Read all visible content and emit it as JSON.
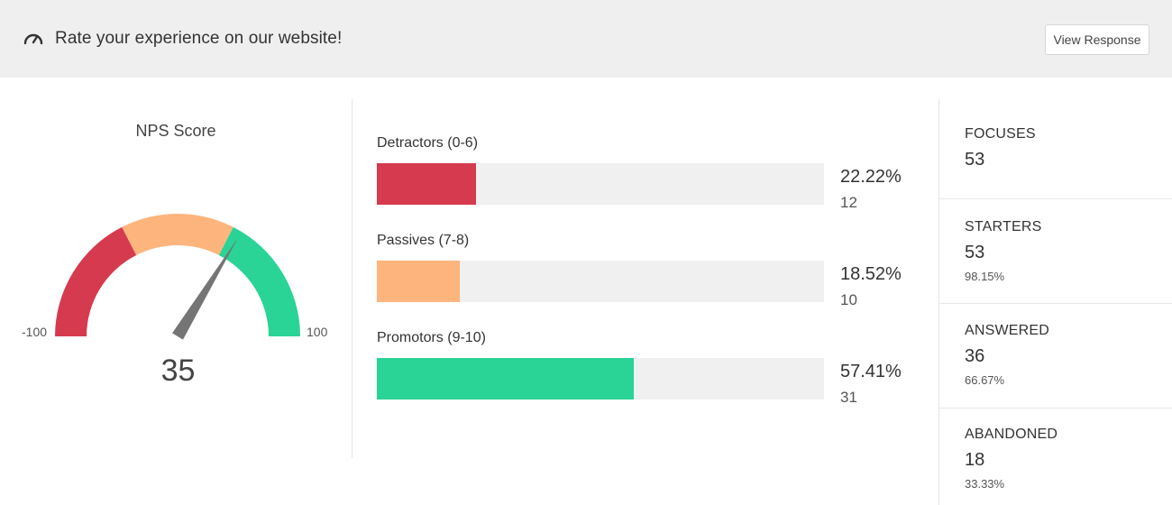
{
  "header": {
    "icon": "speedometer-icon",
    "title": "Rate your experience on our website!",
    "view_button": "View Response"
  },
  "gauge": {
    "title": "NPS Score",
    "min_label": "-100",
    "max_label": "100",
    "score": "35",
    "score_value": 35,
    "range": [
      -100,
      100
    ],
    "colors": [
      "#d63a4e",
      "#fdb57d",
      "#2ad396"
    ]
  },
  "chart_data": {
    "type": "bar",
    "categories": [
      "Detractors (0-6)",
      "Passives (7-8)",
      "Promotors (9-10)"
    ],
    "values": [
      22.22,
      18.52,
      57.41
    ],
    "counts": [
      12,
      10,
      31
    ],
    "value_labels": [
      "22.22%",
      "18.52%",
      "57.41%"
    ],
    "count_labels": [
      "12",
      "10",
      "31"
    ],
    "ylim": [
      0,
      100
    ],
    "colors": [
      "#d63a4e",
      "#fdb57d",
      "#2ad396"
    ]
  },
  "stats": [
    {
      "label": "FOCUSES",
      "value": "53",
      "sub": ""
    },
    {
      "label": "STARTERS",
      "value": "53",
      "sub": "98.15%"
    },
    {
      "label": "ANSWERED",
      "value": "36",
      "sub": "66.67%"
    },
    {
      "label": "ABANDONED",
      "value": "18",
      "sub": "33.33%"
    }
  ]
}
